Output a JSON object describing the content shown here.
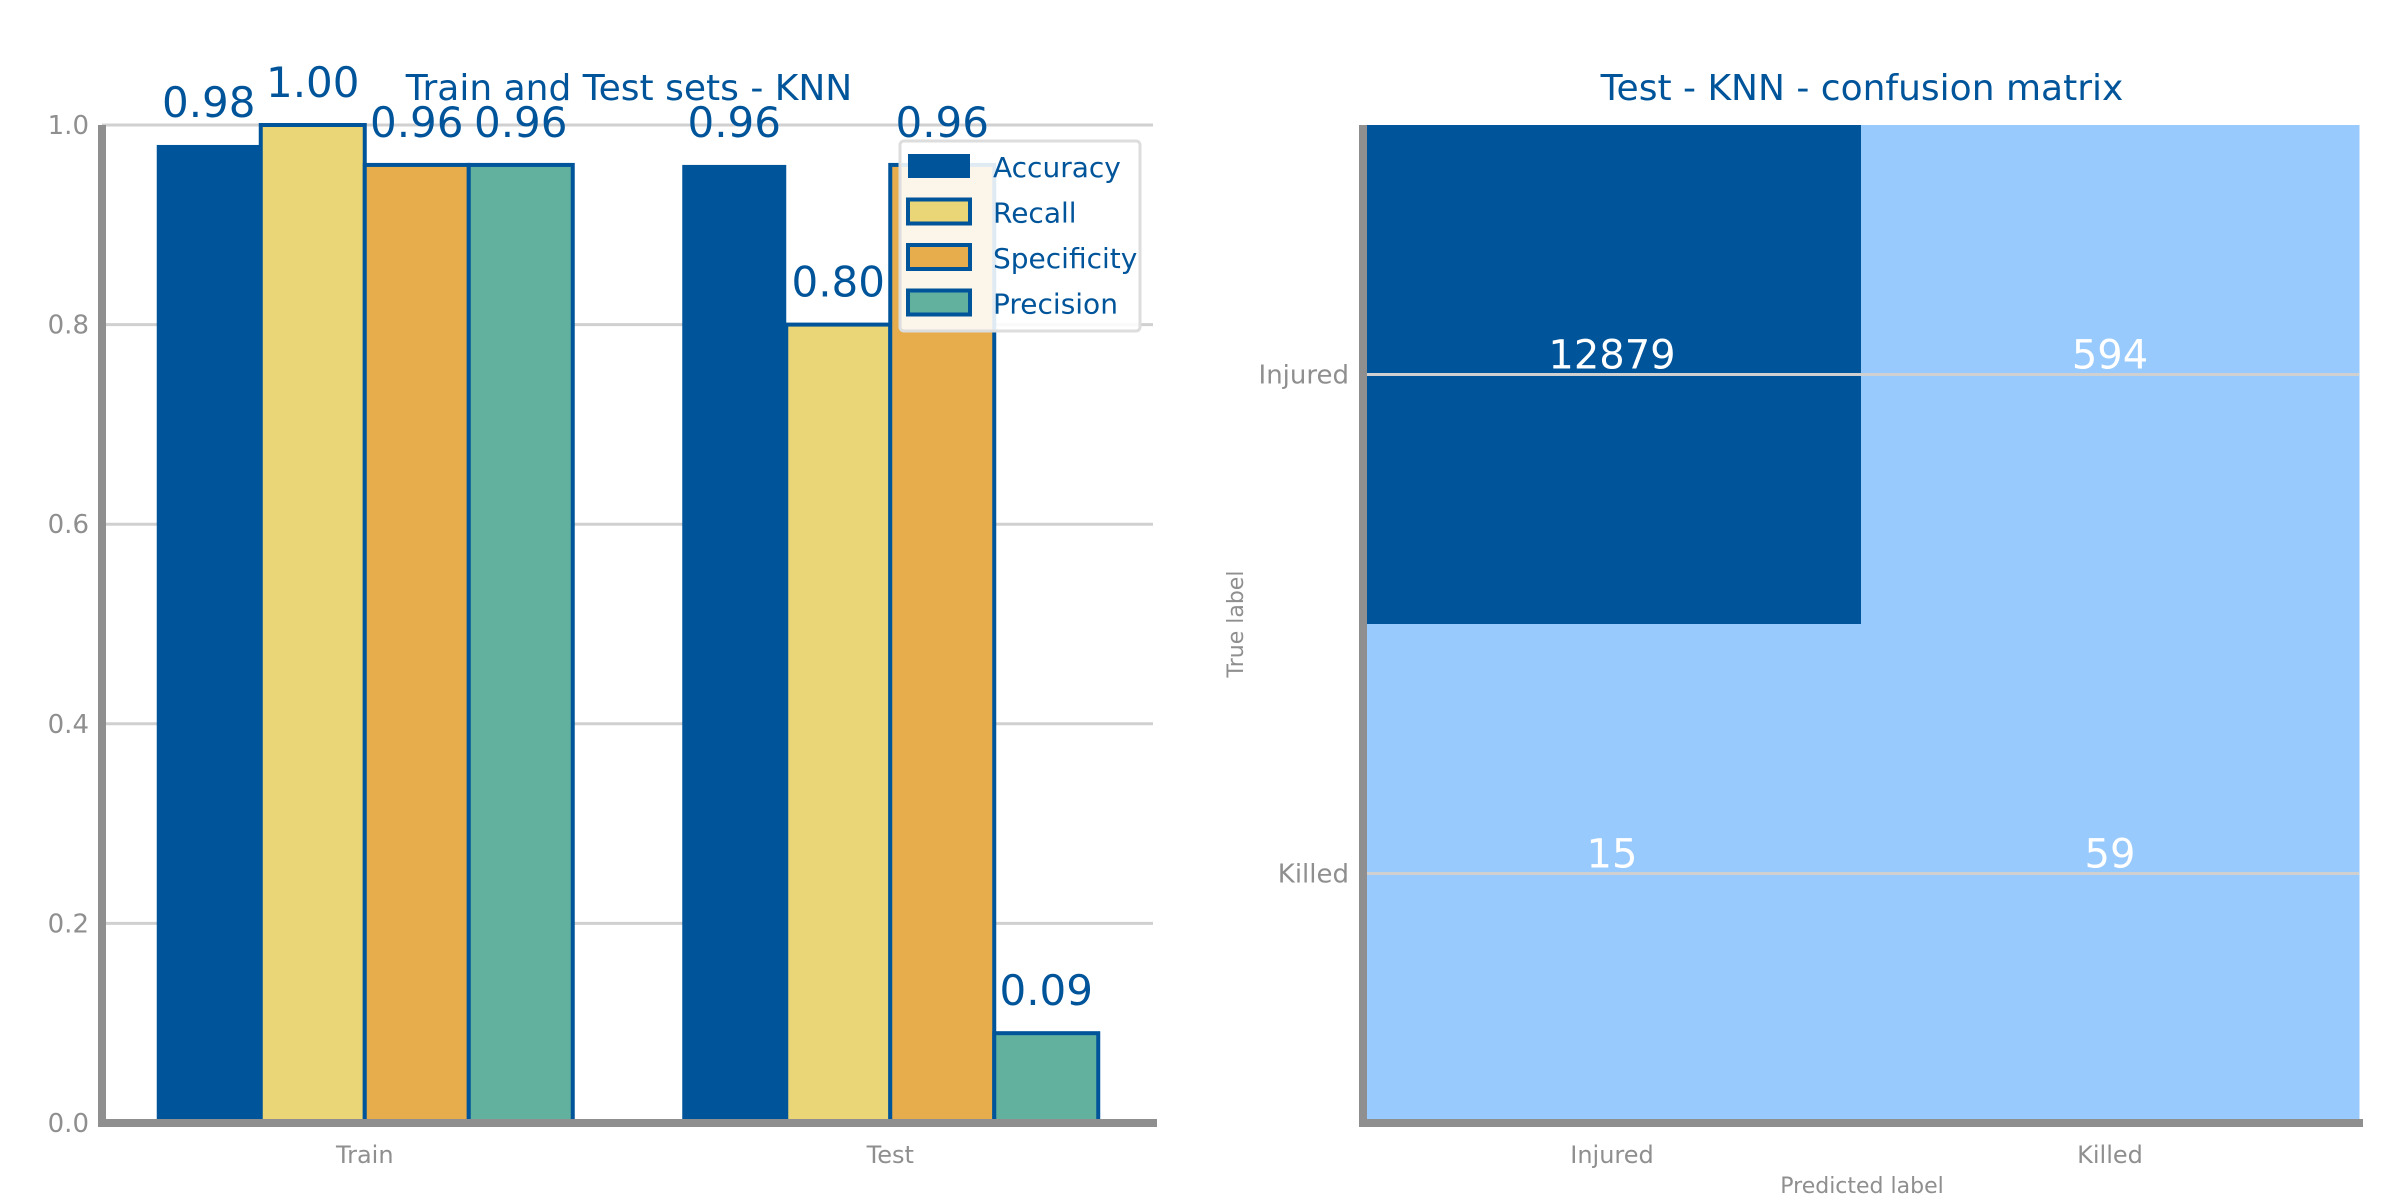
{
  "chart_data": [
    {
      "type": "bar",
      "title": "Train and Test sets - KNN",
      "categories": [
        "Train",
        "Test"
      ],
      "series": [
        {
          "name": "Accuracy",
          "values": [
            0.98,
            0.96
          ],
          "color": "#00549a"
        },
        {
          "name": "Recall",
          "values": [
            1.0,
            0.8
          ],
          "color": "#ead577"
        },
        {
          "name": "Specificity",
          "values": [
            0.96,
            0.96
          ],
          "color": "#e7ad4d"
        },
        {
          "name": "Precision",
          "values": [
            0.96,
            0.09
          ],
          "color": "#62b19e"
        }
      ],
      "value_labels": [
        [
          "0.98",
          "0.96"
        ],
        [
          "1.00",
          "0.80"
        ],
        [
          "0.96",
          "0.96"
        ],
        [
          "0.96",
          "0.09"
        ]
      ],
      "ylim": [
        0,
        1.0
      ],
      "yticks": [
        "0.0",
        "0.2",
        "0.4",
        "0.6",
        "0.8",
        "1.0"
      ],
      "ytick_values": [
        0,
        0.2,
        0.4,
        0.6,
        0.8,
        1.0
      ],
      "grid": true,
      "legend_position": "top-right"
    },
    {
      "type": "heatmap",
      "title": "Test - KNN - confusion matrix",
      "xlabel": "Predicted label",
      "ylabel": "True label",
      "x_categories": [
        "Injured",
        "Killed"
      ],
      "y_categories": [
        "Injured",
        "Killed"
      ],
      "values": [
        [
          12879,
          594
        ],
        [
          15,
          59
        ]
      ],
      "value_labels": [
        [
          "12879",
          "594"
        ],
        [
          "15",
          "59"
        ]
      ],
      "colors": {
        "high": "#00549a",
        "low": "#99cafe"
      }
    }
  ]
}
